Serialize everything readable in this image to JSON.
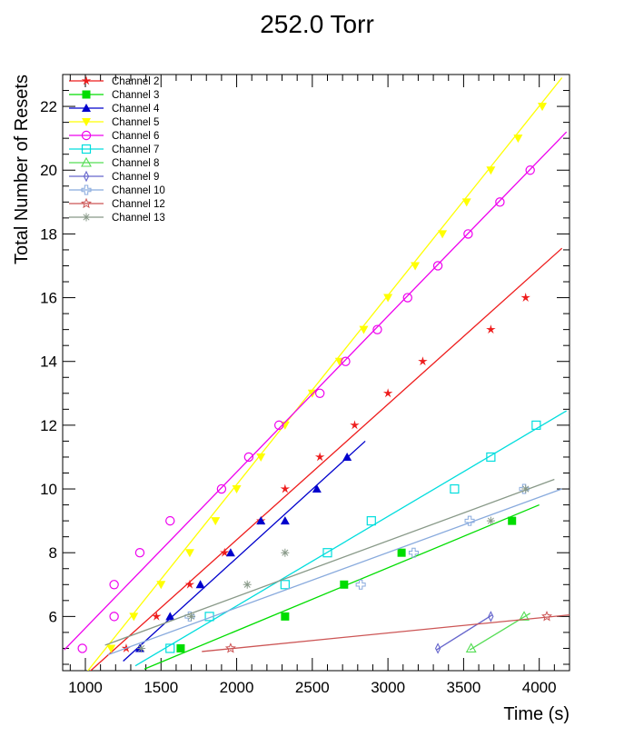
{
  "chart_data": {
    "type": "scatter",
    "title": "252.0 Torr",
    "xlabel": "Time (s)",
    "ylabel": "Total Number of Resets",
    "xlim": [
      850,
      4200
    ],
    "ylim": [
      4.3,
      23.0
    ],
    "xticks": [
      1000,
      1500,
      2000,
      2500,
      3000,
      3500,
      4000
    ],
    "yticks": [
      6,
      8,
      10,
      12,
      14,
      16,
      18,
      20,
      22
    ],
    "legend": "top-left",
    "grid": false,
    "series": [
      {
        "name": "Channel 2",
        "color": "#ee1c1c",
        "marker": "star",
        "x": [
          1270,
          1470,
          1690,
          1920,
          2160,
          2320,
          2550,
          2780,
          3000,
          3230,
          3680,
          3910
        ],
        "y": [
          5,
          6,
          7,
          8,
          9,
          10,
          11,
          12,
          13,
          14,
          15,
          16
        ],
        "fit": [
          [
            1000,
            4.15
          ],
          [
            4150,
            17.55
          ]
        ]
      },
      {
        "name": "Channel 3",
        "color": "#00dd00",
        "marker": "square",
        "x": [
          1630,
          2320,
          2710,
          3090,
          3820
        ],
        "y": [
          5,
          6,
          7,
          8,
          9
        ],
        "fit": [
          [
            1390,
            4.35
          ],
          [
            4000,
            9.5
          ]
        ]
      },
      {
        "name": "Channel 4",
        "color": "#0000cc",
        "marker": "triangle-up",
        "x": [
          1360,
          1560,
          1760,
          1960,
          2160,
          2320,
          2530,
          2730
        ],
        "y": [
          5,
          6,
          7,
          8,
          9,
          9,
          10,
          11
        ],
        "fit": [
          [
            1250,
            4.6
          ],
          [
            2850,
            11.5
          ]
        ]
      },
      {
        "name": "Channel 5",
        "color": "#ffff00",
        "marker": "triangle-down",
        "x": [
          1170,
          1320,
          1500,
          1690,
          1860,
          2000,
          2160,
          2320,
          2500,
          2680,
          2840,
          3000,
          3180,
          3360,
          3520,
          3680,
          3860,
          4020
        ],
        "y": [
          5,
          6,
          7,
          8,
          9,
          10,
          11,
          12,
          13,
          14,
          15,
          16,
          17,
          18,
          19,
          20,
          21,
          22
        ],
        "fit": [
          [
            1000,
            4.2
          ],
          [
            4150,
            22.9
          ]
        ]
      },
      {
        "name": "Channel 6",
        "color": "#ee00ee",
        "marker": "open-circle",
        "x": [
          980,
          1190,
          1190,
          1360,
          1560,
          1900,
          2080,
          2280,
          2550,
          2720,
          2930,
          3130,
          3330,
          3530,
          3740,
          3940
        ],
        "y": [
          5,
          6,
          7,
          8,
          9,
          10,
          11,
          12,
          13,
          14,
          15,
          16,
          17,
          18,
          19,
          20
        ],
        "fit": [
          [
            860,
            4.95
          ],
          [
            4180,
            21.2
          ]
        ]
      },
      {
        "name": "Channel 7",
        "color": "#00dddd",
        "marker": "open-square",
        "x": [
          1560,
          1820,
          2320,
          2600,
          2890,
          3440,
          3680,
          3980
        ],
        "y": [
          5,
          6,
          7,
          8,
          9,
          10,
          11,
          12
        ],
        "fit": [
          [
            1330,
            4.45
          ],
          [
            4180,
            12.45
          ]
        ]
      },
      {
        "name": "Channel 8",
        "color": "#55dd55",
        "marker": "open-triangle-up",
        "x": [
          3550,
          3900
        ],
        "y": [
          5,
          6
        ],
        "fit": [
          [
            3540,
            4.95
          ],
          [
            3940,
            6.1
          ]
        ]
      },
      {
        "name": "Channel 9",
        "color": "#6666cc",
        "marker": "thin-diamond",
        "x": [
          3330,
          3680
        ],
        "y": [
          5,
          6
        ],
        "fit": [
          [
            3320,
            4.95
          ],
          [
            3690,
            6.05
          ]
        ]
      },
      {
        "name": "Channel 10",
        "color": "#88aadd",
        "marker": "open-cross",
        "x": [
          1690,
          2820,
          3170,
          3540,
          3900
        ],
        "y": [
          6,
          7,
          8,
          9,
          10
        ],
        "fit": [
          [
            1150,
            4.8
          ],
          [
            4150,
            10.0
          ]
        ]
      },
      {
        "name": "Channel 12",
        "color": "#cc5555",
        "marker": "open-star",
        "x": [
          1960,
          4050
        ],
        "y": [
          5,
          6
        ],
        "fit": [
          [
            1770,
            4.9
          ],
          [
            4200,
            6.05
          ]
        ]
      },
      {
        "name": "Channel 13",
        "color": "#889988",
        "marker": "asterisk",
        "x": [
          1370,
          1700,
          2070,
          2320,
          3680,
          3910
        ],
        "y": [
          5,
          6,
          7,
          8,
          9,
          10
        ],
        "fit": [
          [
            1130,
            5.1
          ],
          [
            4100,
            10.3
          ]
        ]
      }
    ]
  }
}
